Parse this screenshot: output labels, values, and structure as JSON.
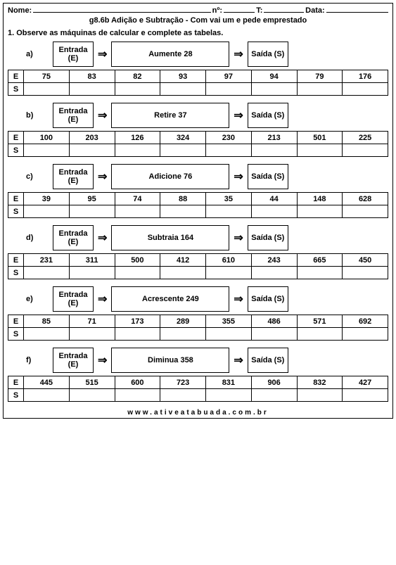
{
  "header": {
    "name_label": "Nome:",
    "num_label": "nº:",
    "t_label": "T:",
    "date_label": "Data:"
  },
  "title": "g8.6b Adição e Subtração - Com vai um e pede emprestado",
  "instruction": "1. Observe as máquinas de calcular e complete as tabelas.",
  "labels": {
    "entrada": "Entrada (E)",
    "saida": "Saída (S)",
    "row_e": "E",
    "row_s": "S",
    "arrow": "⇒"
  },
  "exercises": [
    {
      "letter": "a)",
      "op": "Aumente 28",
      "values": [
        "75",
        "83",
        "82",
        "93",
        "97",
        "94",
        "79",
        "176"
      ]
    },
    {
      "letter": "b)",
      "op": "Retire 37",
      "values": [
        "100",
        "203",
        "126",
        "324",
        "230",
        "213",
        "501",
        "225"
      ]
    },
    {
      "letter": "c)",
      "op": "Adicione 76",
      "values": [
        "39",
        "95",
        "74",
        "88",
        "35",
        "44",
        "148",
        "628"
      ]
    },
    {
      "letter": "d)",
      "op": "Subtraia 164",
      "values": [
        "231",
        "311",
        "500",
        "412",
        "610",
        "243",
        "665",
        "450"
      ]
    },
    {
      "letter": "e)",
      "op": "Acrescente 249",
      "values": [
        "85",
        "71",
        "173",
        "289",
        "355",
        "486",
        "571",
        "692"
      ]
    },
    {
      "letter": "f)",
      "op": "Diminua 358",
      "values": [
        "445",
        "515",
        "600",
        "723",
        "831",
        "906",
        "832",
        "427"
      ]
    }
  ],
  "footer": "www.ativeatabuada.com.br"
}
